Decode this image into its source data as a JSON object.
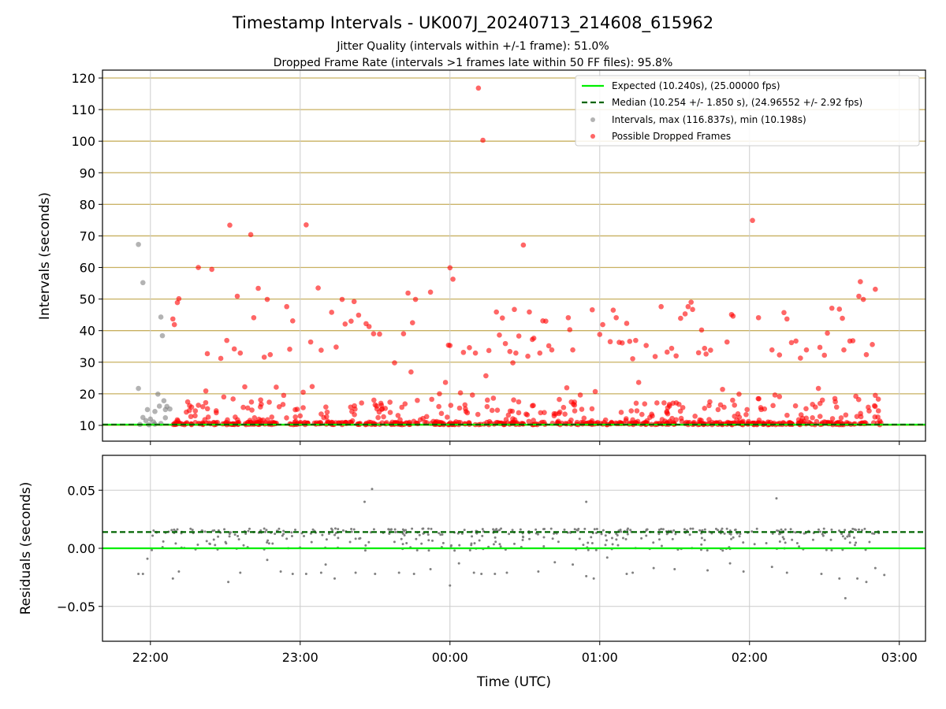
{
  "figure": {
    "title": "Timestamp Intervals - UK007J_20240713_214608_615962",
    "subtitle_1": "Jitter Quality (intervals within +/-1 frame): 51.0%",
    "subtitle_2": "Dropped Frame Rate (intervals >1 frames late within 50 FF files): 95.8%"
  },
  "colors": {
    "expected": "#00ee00",
    "median": "#006400",
    "intervals": "#808080",
    "dropped": "#ff0000",
    "grid_major": "#c8b060",
    "grid": "#cccccc"
  },
  "chart_data": [
    {
      "type": "scatter",
      "ylabel": "Intervals (seconds)",
      "xlabel": "",
      "x_unit": "hours since 21:00 UTC",
      "xlim": [
        0.68,
        6.175
      ],
      "ylim": [
        5,
        122.5
      ],
      "yticks": [
        10,
        20,
        30,
        40,
        50,
        60,
        70,
        80,
        90,
        100,
        110,
        120
      ],
      "expected_line": 10.24,
      "median_line": 10.254,
      "legend": {
        "position": "top-right",
        "expected": "Expected (10.240s), (25.00000 fps)",
        "median": "Median (10.254 +/- 1.850 s), (24.96552 +/- 2.92 fps)",
        "intervals": "Intervals, max (116.837s), min (10.198s)",
        "dropped": "Possible Dropped Frames"
      },
      "gray_points": [
        [
          0.92,
          67.3
        ],
        [
          0.92,
          21.7
        ],
        [
          0.95,
          55.2
        ],
        [
          0.93,
          10.3
        ],
        [
          0.95,
          12.5
        ],
        [
          0.97,
          11.5
        ],
        [
          0.98,
          15.0
        ],
        [
          1.0,
          12.0
        ],
        [
          1.02,
          11.1
        ],
        [
          1.03,
          14.4
        ],
        [
          1.05,
          19.9
        ],
        [
          1.06,
          16.1
        ],
        [
          1.07,
          44.3
        ],
        [
          1.08,
          38.4
        ],
        [
          1.09,
          17.8
        ],
        [
          1.1,
          15.0
        ],
        [
          1.1,
          12.4
        ],
        [
          1.11,
          16.0
        ],
        [
          1.13,
          15.2
        ],
        [
          1.03,
          10.4
        ],
        [
          1.07,
          10.6
        ],
        [
          0.99,
          10.2
        ]
      ],
      "red_points": [
        [
          1.15,
          43.7
        ],
        [
          1.16,
          41.9
        ],
        [
          1.18,
          48.9
        ],
        [
          1.19,
          50.1
        ],
        [
          1.24,
          14.2
        ],
        [
          1.26,
          14.7
        ],
        [
          1.27,
          12.8
        ],
        [
          1.3,
          14.6
        ],
        [
          1.32,
          60.0
        ],
        [
          1.35,
          15.9
        ],
        [
          1.37,
          20.9
        ],
        [
          1.38,
          32.7
        ],
        [
          1.41,
          59.4
        ],
        [
          1.44,
          14.0
        ],
        [
          1.47,
          31.2
        ],
        [
          1.49,
          19.0
        ],
        [
          1.51,
          36.9
        ],
        [
          1.53,
          73.4
        ],
        [
          1.56,
          34.2
        ],
        [
          1.58,
          50.9
        ],
        [
          1.6,
          32.9
        ],
        [
          1.62,
          15.7
        ],
        [
          1.63,
          22.2
        ],
        [
          1.67,
          70.4
        ],
        [
          1.69,
          44.1
        ],
        [
          1.72,
          53.4
        ],
        [
          1.74,
          16.7
        ],
        [
          1.76,
          31.6
        ],
        [
          1.78,
          49.9
        ],
        [
          1.8,
          32.4
        ],
        [
          1.84,
          22.1
        ],
        [
          1.86,
          15.9
        ],
        [
          1.89,
          19.5
        ],
        [
          1.91,
          47.6
        ],
        [
          1.93,
          34.1
        ],
        [
          1.95,
          43.1
        ],
        [
          1.98,
          15.1
        ],
        [
          2.0,
          13.0
        ],
        [
          2.02,
          20.5
        ],
        [
          2.04,
          73.5
        ],
        [
          2.07,
          36.4
        ],
        [
          2.08,
          22.3
        ],
        [
          2.12,
          53.5
        ],
        [
          2.14,
          33.8
        ],
        [
          2.18,
          14.2
        ],
        [
          2.21,
          45.8
        ],
        [
          2.24,
          34.8
        ],
        [
          2.28,
          49.9
        ],
        [
          2.3,
          42.1
        ],
        [
          2.34,
          43.0
        ],
        [
          2.36,
          49.2
        ],
        [
          2.39,
          44.9
        ],
        [
          2.44,
          42.2
        ],
        [
          2.46,
          41.3
        ],
        [
          2.49,
          39.0
        ],
        [
          2.53,
          38.9
        ],
        [
          2.63,
          29.8
        ],
        [
          2.69,
          39.0
        ],
        [
          2.72,
          51.9
        ],
        [
          2.74,
          26.9
        ],
        [
          2.75,
          42.5
        ],
        [
          2.77,
          49.9
        ],
        [
          2.82,
          12.2
        ],
        [
          2.87,
          52.2
        ],
        [
          2.93,
          20.0
        ],
        [
          2.97,
          23.6
        ],
        [
          2.99,
          35.4
        ],
        [
          3.0,
          35.3
        ],
        [
          3.0,
          59.9
        ],
        [
          3.02,
          56.3
        ],
        [
          3.07,
          20.3
        ],
        [
          3.09,
          33.1
        ],
        [
          3.13,
          34.6
        ],
        [
          3.15,
          19.6
        ],
        [
          3.17,
          32.9
        ],
        [
          3.19,
          116.8
        ],
        [
          3.22,
          100.3
        ],
        [
          3.24,
          25.7
        ],
        [
          3.26,
          33.7
        ],
        [
          3.29,
          18.6
        ],
        [
          3.31,
          45.9
        ],
        [
          3.33,
          38.6
        ],
        [
          3.35,
          44.0
        ],
        [
          3.37,
          35.9
        ],
        [
          3.4,
          33.4
        ],
        [
          3.42,
          29.8
        ],
        [
          3.43,
          46.7
        ],
        [
          3.44,
          32.9
        ],
        [
          3.46,
          38.3
        ],
        [
          3.49,
          67.1
        ],
        [
          3.52,
          31.9
        ],
        [
          3.53,
          45.9
        ],
        [
          3.55,
          37.2
        ],
        [
          3.56,
          37.6
        ],
        [
          3.6,
          32.9
        ],
        [
          3.62,
          43.1
        ],
        [
          3.64,
          43.0
        ],
        [
          3.66,
          35.2
        ],
        [
          3.68,
          33.9
        ],
        [
          3.73,
          18.2
        ],
        [
          3.78,
          21.9
        ],
        [
          3.79,
          44.1
        ],
        [
          3.8,
          40.3
        ],
        [
          3.82,
          33.9
        ],
        [
          3.87,
          19.6
        ],
        [
          3.95,
          46.6
        ],
        [
          3.97,
          20.7
        ],
        [
          4.0,
          38.8
        ],
        [
          4.02,
          41.9
        ],
        [
          4.07,
          36.5
        ],
        [
          4.09,
          46.5
        ],
        [
          4.11,
          44.1
        ],
        [
          4.13,
          36.3
        ],
        [
          4.15,
          36.1
        ],
        [
          4.18,
          42.3
        ],
        [
          4.2,
          36.6
        ],
        [
          4.22,
          31.1
        ],
        [
          4.24,
          36.9
        ],
        [
          4.26,
          23.6
        ],
        [
          4.31,
          35.3
        ],
        [
          4.37,
          31.8
        ],
        [
          4.41,
          47.6
        ],
        [
          4.45,
          33.2
        ],
        [
          4.48,
          34.4
        ],
        [
          4.51,
          32.0
        ],
        [
          4.54,
          43.9
        ],
        [
          4.57,
          45.3
        ],
        [
          4.59,
          47.6
        ],
        [
          4.61,
          49.0
        ],
        [
          4.62,
          46.7
        ],
        [
          4.66,
          33.0
        ],
        [
          4.68,
          40.2
        ],
        [
          4.7,
          34.4
        ],
        [
          4.71,
          32.6
        ],
        [
          4.74,
          33.8
        ],
        [
          4.79,
          15.0
        ],
        [
          4.82,
          21.4
        ],
        [
          4.85,
          36.4
        ],
        [
          4.88,
          45.1
        ],
        [
          4.89,
          44.6
        ],
        [
          4.93,
          19.9
        ],
        [
          5.02,
          74.9
        ],
        [
          5.06,
          44.1
        ],
        [
          5.1,
          15.2
        ],
        [
          5.15,
          33.9
        ],
        [
          5.17,
          19.6
        ],
        [
          5.2,
          32.3
        ],
        [
          5.23,
          45.7
        ],
        [
          5.25,
          43.7
        ],
        [
          5.28,
          36.2
        ],
        [
          5.31,
          36.7
        ],
        [
          5.34,
          31.3
        ],
        [
          5.38,
          33.9
        ],
        [
          5.46,
          21.7
        ],
        [
          5.47,
          34.7
        ],
        [
          5.5,
          32.2
        ],
        [
          5.52,
          39.2
        ],
        [
          5.55,
          47.1
        ],
        [
          5.57,
          18.5
        ],
        [
          5.6,
          46.8
        ],
        [
          5.62,
          43.9
        ],
        [
          5.63,
          33.9
        ],
        [
          5.67,
          36.7
        ],
        [
          5.69,
          36.8
        ],
        [
          5.71,
          19.2
        ],
        [
          5.73,
          50.9
        ],
        [
          5.74,
          55.5
        ],
        [
          5.76,
          49.9
        ],
        [
          5.78,
          32.4
        ],
        [
          5.82,
          35.6
        ],
        [
          5.84,
          53.1
        ],
        [
          5.84,
          19.5
        ],
        [
          5.86,
          18.3
        ],
        [
          5.2,
          19.1
        ],
        [
          4.7,
          15.4
        ],
        [
          4.3,
          16.8
        ],
        [
          3.88,
          15.1
        ],
        [
          3.55,
          16.2
        ],
        [
          3.1,
          16.5
        ],
        [
          2.7,
          16.8
        ],
        [
          2.41,
          17.1
        ],
        [
          2.02,
          15.6
        ],
        [
          1.65,
          15.5
        ]
      ],
      "red_band": {
        "x_start": 1.15,
        "x_end": 5.88,
        "y_min": 10.2,
        "y_max": 18.5,
        "count": 700
      }
    },
    {
      "type": "scatter",
      "ylabel": "Residuals (seconds)",
      "xlabel": "Time (UTC)",
      "xlim": [
        0.68,
        6.175
      ],
      "ylim": [
        -0.08,
        0.08
      ],
      "yticks": [
        0.05,
        0.0,
        -0.05
      ],
      "ytick_labels": [
        "0.05",
        "0.00",
        "−0.05"
      ],
      "xtick_hours": [
        1,
        2,
        3,
        4,
        5,
        6,
        7
      ],
      "xtick_labels": [
        "22:00",
        "23:00",
        "00:00",
        "01:00",
        "02:00",
        "03:00"
      ],
      "expected_line": 0.0,
      "median_line": 0.014,
      "points": [
        [
          0.92,
          -0.022
        ],
        [
          0.95,
          -0.022
        ],
        [
          0.98,
          -0.009
        ],
        [
          1.15,
          -0.026
        ],
        [
          1.19,
          -0.02
        ],
        [
          1.52,
          -0.029
        ],
        [
          1.6,
          -0.021
        ],
        [
          1.78,
          -0.01
        ],
        [
          1.87,
          -0.02
        ],
        [
          1.95,
          -0.022
        ],
        [
          2.04,
          -0.022
        ],
        [
          2.14,
          -0.021
        ],
        [
          2.17,
          -0.014
        ],
        [
          2.23,
          -0.026
        ],
        [
          2.37,
          -0.021
        ],
        [
          2.5,
          -0.022
        ],
        [
          2.66,
          -0.021
        ],
        [
          2.76,
          -0.022
        ],
        [
          2.81,
          0.004
        ],
        [
          2.87,
          -0.018
        ],
        [
          3.0,
          -0.032
        ],
        [
          3.06,
          -0.013
        ],
        [
          3.16,
          -0.021
        ],
        [
          3.21,
          -0.022
        ],
        [
          3.3,
          -0.022
        ],
        [
          3.38,
          -0.021
        ],
        [
          3.59,
          -0.02
        ],
        [
          3.7,
          -0.012
        ],
        [
          3.82,
          -0.014
        ],
        [
          3.91,
          -0.024
        ],
        [
          3.96,
          -0.026
        ],
        [
          4.05,
          -0.008
        ],
        [
          4.18,
          -0.022
        ],
        [
          4.22,
          -0.021
        ],
        [
          4.36,
          -0.017
        ],
        [
          4.5,
          -0.018
        ],
        [
          4.72,
          -0.019
        ],
        [
          4.87,
          -0.013
        ],
        [
          4.96,
          -0.02
        ],
        [
          5.15,
          -0.016
        ],
        [
          5.25,
          -0.021
        ],
        [
          5.48,
          -0.022
        ],
        [
          5.64,
          -0.043
        ],
        [
          5.6,
          -0.026
        ],
        [
          5.72,
          -0.026
        ],
        [
          5.78,
          -0.029
        ],
        [
          5.84,
          -0.017
        ],
        [
          5.9,
          -0.023
        ],
        [
          2.43,
          0.04
        ],
        [
          2.48,
          0.051
        ],
        [
          3.91,
          0.04
        ],
        [
          5.18,
          0.043
        ]
      ],
      "band": {
        "x_start": 1.0,
        "x_end": 5.88,
        "y_min": -0.002,
        "y_max": 0.017,
        "count": 420
      }
    }
  ]
}
